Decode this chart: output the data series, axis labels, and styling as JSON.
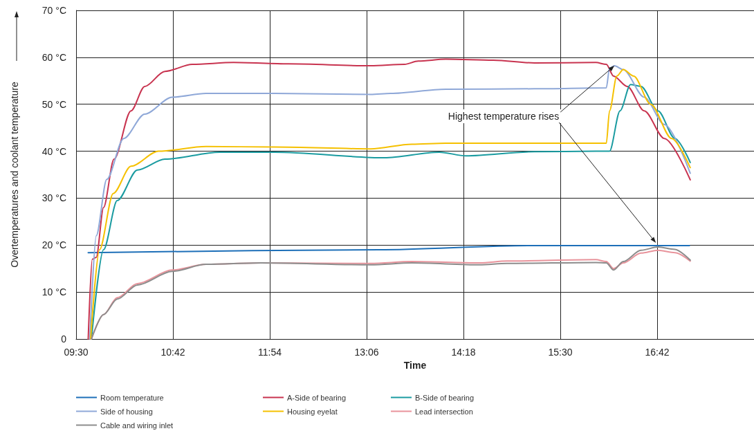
{
  "chart_data": {
    "type": "line",
    "xlabel": "Time",
    "ylabel": "Overtemperatures and coolant temperature",
    "xlim": [
      9.5,
      17.9
    ],
    "ylim": [
      0,
      70
    ],
    "xticks": [
      {
        "value": 9.5,
        "label": "09:30"
      },
      {
        "value": 10.7,
        "label": "10:42"
      },
      {
        "value": 11.9,
        "label": "11:54"
      },
      {
        "value": 13.1,
        "label": "13:06"
      },
      {
        "value": 14.3,
        "label": "14:18"
      },
      {
        "value": 15.5,
        "label": "15:30"
      },
      {
        "value": 16.7,
        "label": "16:42"
      }
    ],
    "yticks": [
      0,
      {
        "value": 10,
        "label": "10 °C"
      },
      {
        "value": 20,
        "label": "20 °C"
      },
      {
        "value": 30,
        "label": "30 °C"
      },
      {
        "value": 40,
        "label": "40 °C"
      },
      {
        "value": 50,
        "label": "50 °C"
      },
      {
        "value": 60,
        "label": "60 °C"
      },
      {
        "value": 70,
        "label": "70 °C"
      }
    ],
    "grid": true,
    "legend": "bottom",
    "marker": "none",
    "line_style": "solid",
    "annotations": [
      {
        "text": "Highest temperature rises",
        "x": 16.17,
        "y": 58.2
      }
    ],
    "series": [
      {
        "name": "Room temperature",
        "color": "#1d6fb8",
        "x": [
          9.65,
          13.25,
          15.1,
          17.1
        ],
        "values": [
          18.4,
          19.0,
          19.9,
          19.9
        ]
      },
      {
        "name": "A-Side of bearing",
        "color": "#c8334f",
        "x": [
          9.65,
          9.7,
          9.75,
          9.84,
          9.97,
          10.18,
          10.35,
          10.6,
          10.94,
          11.45,
          12.13,
          13.15,
          13.57,
          13.74,
          14.08,
          14.67,
          15.18,
          15.94,
          16.07,
          16.16,
          16.33,
          16.54,
          16.79,
          17.11
        ],
        "values": [
          0,
          17,
          17.4,
          28,
          38.3,
          48.6,
          53.8,
          57,
          58.5,
          58.9,
          58.6,
          58.2,
          58.5,
          59.2,
          59.6,
          59.4,
          58.8,
          58.9,
          58.5,
          56,
          53.8,
          48.6,
          42.7,
          33.9
        ]
      },
      {
        "name": "B-Side of bearing",
        "color": "#1a9ba0",
        "x": [
          9.69,
          9.84,
          10.01,
          10.26,
          10.6,
          11.28,
          11.96,
          13.32,
          14.0,
          14.33,
          15.18,
          15.94,
          16.11,
          16.24,
          16.37,
          16.5,
          16.71,
          16.92,
          17.11
        ],
        "values": [
          0,
          19,
          29.5,
          36,
          38.3,
          39.8,
          39.8,
          38.6,
          39.8,
          39,
          39.9,
          40,
          40,
          48.6,
          54.2,
          53.8,
          48.6,
          42.7,
          37.6
        ]
      },
      {
        "name": "Side of housing",
        "color": "#8fa8d8",
        "x": [
          9.67,
          9.75,
          9.88,
          10.09,
          10.35,
          10.69,
          11.11,
          11.96,
          13.15,
          13.4,
          14.08,
          15.18,
          16.07,
          16.11,
          16.17,
          16.28,
          16.54,
          16.79,
          17.11
        ],
        "values": [
          0,
          22,
          34,
          42.7,
          47.9,
          51.5,
          52.3,
          52.3,
          52.1,
          52.3,
          53.2,
          53.3,
          53.5,
          57.7,
          58.2,
          57.4,
          51.5,
          45.7,
          35.3
        ]
      },
      {
        "name": "Housing eyelat",
        "color": "#f5c000",
        "x": [
          9.68,
          9.79,
          9.96,
          10.18,
          10.52,
          11.11,
          11.96,
          13.15,
          13.66,
          14.08,
          15.18,
          16.07,
          16.11,
          16.2,
          16.28,
          16.41,
          16.62,
          16.88,
          17.11
        ],
        "values": [
          0,
          19,
          31,
          36.8,
          40,
          41,
          40.9,
          40.5,
          41.5,
          41.7,
          41.7,
          41.7,
          48.6,
          56,
          57.4,
          56,
          50,
          42.7,
          36.5
        ]
      },
      {
        "name": "Lead intersection",
        "color": "#e8939b",
        "x": [
          9.69,
          9.84,
          10.01,
          10.26,
          10.69,
          11.11,
          11.79,
          13.15,
          13.66,
          14.5,
          14.84,
          15.94,
          16.07,
          16.16,
          16.28,
          16.5,
          16.71,
          16.92,
          17.11
        ],
        "values": [
          0,
          5.2,
          8.8,
          11.8,
          14.7,
          15.9,
          16.2,
          16.1,
          16.5,
          16.2,
          16.6,
          16.9,
          16.5,
          15,
          16.2,
          18.3,
          18.9,
          18.4,
          16.6
        ]
      },
      {
        "name": "Cable and wiring inlet",
        "color": "#8c8c8c",
        "x": [
          9.69,
          9.84,
          10.01,
          10.26,
          10.69,
          11.11,
          11.79,
          13.15,
          13.66,
          14.5,
          14.84,
          15.94,
          16.07,
          16.16,
          16.28,
          16.5,
          16.71,
          16.92,
          17.11
        ],
        "values": [
          0,
          5.2,
          8.5,
          11.5,
          14.4,
          15.9,
          16.2,
          15.8,
          16.2,
          15.8,
          16.1,
          16.3,
          16.2,
          14.7,
          16.5,
          18.9,
          19.6,
          19.1,
          16.8
        ]
      }
    ]
  }
}
